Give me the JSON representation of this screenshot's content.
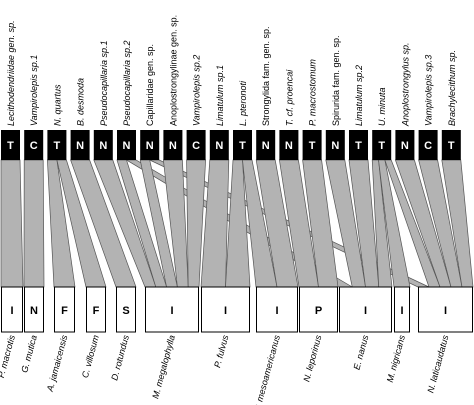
{
  "parasites": [
    {
      "name": "Lecithodendriidae gen. sp.",
      "code": "T",
      "italic": true
    },
    {
      "name": "Vampirolepis sp.1",
      "code": "C",
      "italic": true
    },
    {
      "name": "N. quartus",
      "code": "T",
      "italic": true
    },
    {
      "name": "B. desmoda",
      "code": "N",
      "italic": true
    },
    {
      "name": "Pseudocapillaria sp.1",
      "code": "N",
      "italic": true
    },
    {
      "name": "Pseudocapillaria sp.2",
      "code": "N",
      "italic": true
    },
    {
      "name": "Capillaridae gen. sp.",
      "code": "N",
      "italic": false
    },
    {
      "name": "Anoplostrongylinae gen. sp.",
      "code": "N",
      "italic": false
    },
    {
      "name": "Vampirolepis sp.2",
      "code": "C",
      "italic": true
    },
    {
      "name": "Limatulum sp.1",
      "code": "N",
      "italic": true
    },
    {
      "name": "L. pteronoti",
      "code": "T",
      "italic": true
    },
    {
      "name": "Strongylida fam. gen. sp.",
      "code": "N",
      "italic": false
    },
    {
      "name": "T. cf. proencai",
      "code": "N",
      "italic": true
    },
    {
      "name": "P. macrostomum",
      "code": "T",
      "italic": true
    },
    {
      "name": "Spirurida fam. gen. sp.",
      "code": "N",
      "italic": false
    },
    {
      "name": "Limatulum sp.2",
      "code": "T",
      "italic": true
    },
    {
      "name": "U. minuta",
      "code": "T",
      "italic": true
    },
    {
      "name": "Anoplostrongylus sp.",
      "code": "N",
      "italic": true
    },
    {
      "name": "Vampirolepis sp.3",
      "code": "C",
      "italic": true
    },
    {
      "name": "Brachylecithum sp.",
      "code": "T",
      "italic": true
    }
  ],
  "hosts": [
    {
      "name": "P. macrotis",
      "code": "I"
    },
    {
      "name": "G. mutica",
      "code": "N"
    },
    {
      "name": "A. jamaicensis",
      "code": "F"
    },
    {
      "name": "C. villosum",
      "code": "F"
    },
    {
      "name": "D. rotundus",
      "code": "S"
    },
    {
      "name": "M. megalophylla",
      "code": "I"
    },
    {
      "name": "P. fulvus",
      "code": "I"
    },
    {
      "name": "P. mesoamericanus",
      "code": "I"
    },
    {
      "name": "N. leporinus",
      "code": "P"
    },
    {
      "name": "E. nanus",
      "code": "I"
    },
    {
      "name": "M. nigricans",
      "code": "I"
    },
    {
      "name": "N. laticaudatus",
      "code": "I"
    }
  ],
  "links": [
    {
      "parasite": "Lecithodendriidae gen. sp.",
      "host": "P. macrotis"
    },
    {
      "parasite": "Vampirolepis sp.1",
      "host": "G. mutica"
    },
    {
      "parasite": "N. quartus",
      "host": "A. jamaicensis"
    },
    {
      "parasite": "N. quartus",
      "host": "C. villosum"
    },
    {
      "parasite": "B. desmoda",
      "host": "D. rotundus"
    },
    {
      "parasite": "Pseudocapillaria sp.1",
      "host": "M. megalophylla"
    },
    {
      "parasite": "Pseudocapillaria sp.2",
      "host": "M. megalophylla"
    },
    {
      "parasite": "Pseudocapillaria sp.2",
      "host": "E. nanus"
    },
    {
      "parasite": "Capillaridae gen. sp.",
      "host": "M. megalophylla"
    },
    {
      "parasite": "Capillaridae gen. sp.",
      "host": "N. laticaudatus"
    },
    {
      "parasite": "Anoplostrongylinae gen. sp.",
      "host": "M. megalophylla"
    },
    {
      "parasite": "Vampirolepis sp.2",
      "host": "M. megalophylla"
    },
    {
      "parasite": "Limatulum sp.1",
      "host": "P. fulvus"
    },
    {
      "parasite": "L. pteronoti",
      "host": "P. fulvus"
    },
    {
      "parasite": "L. pteronoti",
      "host": "P. mesoamericanus"
    },
    {
      "parasite": "Strongylida fam. gen. sp.",
      "host": "P. mesoamericanus"
    },
    {
      "parasite": "T. cf. proencai",
      "host": "N. leporinus"
    },
    {
      "parasite": "P. macrostomum",
      "host": "N. leporinus"
    },
    {
      "parasite": "Spirurida fam. gen. sp.",
      "host": "E. nanus"
    },
    {
      "parasite": "Limatulum sp.2",
      "host": "E. nanus"
    },
    {
      "parasite": "U. minuta",
      "host": "E. nanus"
    },
    {
      "parasite": "U. minuta",
      "host": "M. nigricans"
    },
    {
      "parasite": "U. minuta",
      "host": "N. laticaudatus"
    },
    {
      "parasite": "Anoplostrongylus sp.",
      "host": "N. laticaudatus"
    },
    {
      "parasite": "Vampirolepis sp.3",
      "host": "N. laticaudatus"
    },
    {
      "parasite": "Brachylecithum sp.",
      "host": "N. laticaudatus"
    }
  ],
  "colors": {
    "parasite_box": "#000000",
    "parasite_text": "#ffffff",
    "host_box_fill": "#ffffff",
    "host_box_border": "#000000",
    "link_fill": "#b3b3b3",
    "link_stroke": "#555555"
  }
}
